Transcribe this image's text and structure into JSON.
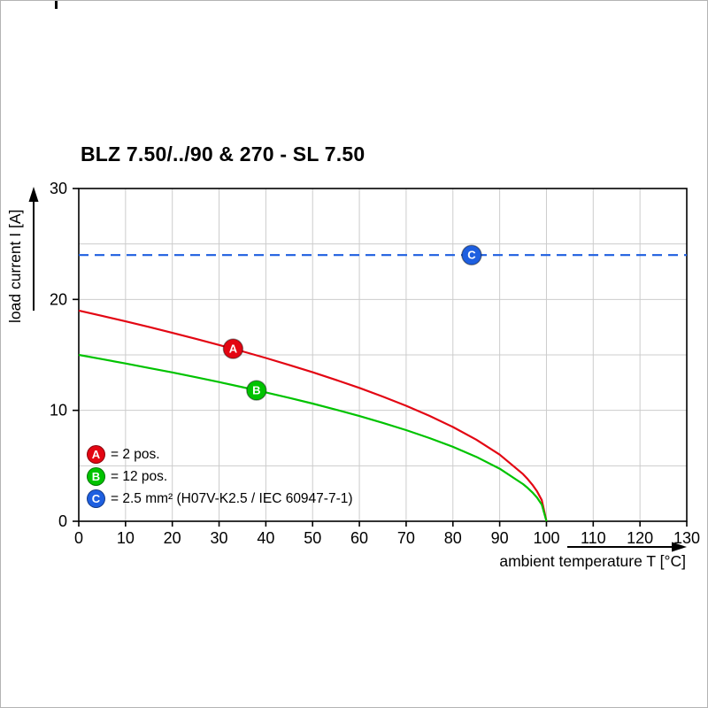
{
  "chart_data": {
    "type": "line",
    "title": "BLZ 7.50/../90 & 270 - SL 7.50",
    "xlabel": "ambient temperature T [°C]",
    "ylabel": "load current I [A]",
    "xlim": [
      0,
      130
    ],
    "ylim": [
      0,
      30
    ],
    "x_ticks": [
      0,
      10,
      20,
      30,
      40,
      50,
      60,
      70,
      80,
      90,
      100,
      110,
      120,
      130
    ],
    "y_ticks": [
      0,
      10,
      20,
      30
    ],
    "grid": {
      "x_step": 10,
      "y_step": 5,
      "color": "#cccccc"
    },
    "x": [
      0,
      5,
      10,
      15,
      20,
      25,
      30,
      35,
      40,
      45,
      50,
      55,
      60,
      65,
      70,
      75,
      80,
      85,
      90,
      95,
      96,
      97,
      98,
      99,
      100
    ],
    "series": [
      {
        "name": "A",
        "label": "= 2 pos.",
        "color": "#e30613",
        "style": "solid",
        "values": [
          19,
          18.52,
          18.02,
          17.52,
          16.99,
          16.45,
          15.89,
          15.32,
          14.72,
          14.09,
          13.44,
          12.74,
          12.02,
          11.24,
          10.41,
          9.5,
          8.5,
          7.36,
          6.01,
          4.25,
          3.8,
          3.29,
          2.69,
          1.9,
          0
        ],
        "marker": {
          "x": 33,
          "y": 15.55
        }
      },
      {
        "name": "B",
        "label": "= 12 pos.",
        "color": "#00c300",
        "style": "solid",
        "values": [
          15,
          14.62,
          14.23,
          13.82,
          13.42,
          12.99,
          12.55,
          12.09,
          11.62,
          11.12,
          10.61,
          10.06,
          9.49,
          8.87,
          8.22,
          7.5,
          6.71,
          5.81,
          4.74,
          3.35,
          3.0,
          2.6,
          2.12,
          1.5,
          0
        ],
        "marker": {
          "x": 38,
          "y": 11.8
        }
      },
      {
        "name": "C",
        "label": "= 2.5 mm² (H07V-K2.5 / IEC 60947-7-1)",
        "color": "#1e5fe0",
        "style": "dashed",
        "y_const": 24,
        "marker": {
          "x": 84,
          "y": 24
        }
      }
    ]
  }
}
